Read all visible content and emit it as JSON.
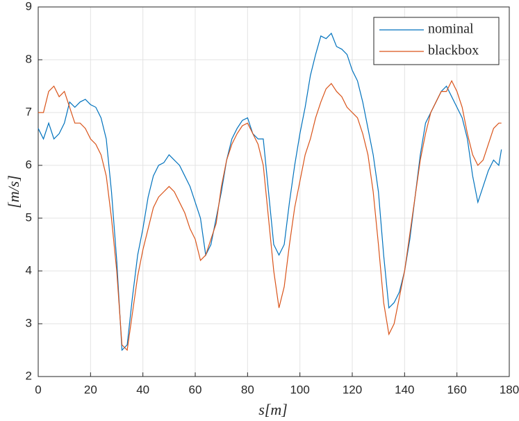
{
  "chart_data": {
    "type": "line",
    "x_label": "s[m]",
    "y_label": "[m/s]",
    "x": [
      0,
      2,
      4,
      6,
      8,
      10,
      12,
      14,
      16,
      18,
      20,
      22,
      24,
      26,
      28,
      30,
      32,
      34,
      36,
      38,
      40,
      42,
      44,
      46,
      48,
      50,
      52,
      54,
      56,
      58,
      60,
      62,
      64,
      66,
      68,
      70,
      72,
      74,
      76,
      78,
      80,
      82,
      84,
      86,
      88,
      90,
      92,
      94,
      96,
      98,
      100,
      102,
      104,
      106,
      108,
      110,
      112,
      114,
      116,
      118,
      120,
      122,
      124,
      126,
      128,
      130,
      132,
      134,
      136,
      138,
      140,
      142,
      144,
      146,
      148,
      150,
      152,
      154,
      156,
      158,
      160,
      162,
      164,
      166,
      168,
      170,
      172,
      174,
      176,
      177
    ],
    "series": [
      {
        "name": "nominal",
        "color": "#0072BD",
        "values": [
          6.7,
          6.5,
          6.8,
          6.5,
          6.6,
          6.8,
          7.2,
          7.1,
          7.2,
          7.25,
          7.15,
          7.1,
          6.9,
          6.5,
          5.5,
          4.2,
          2.5,
          2.6,
          3.5,
          4.3,
          4.8,
          5.4,
          5.8,
          6.0,
          6.05,
          6.2,
          6.1,
          6.0,
          5.8,
          5.6,
          5.3,
          5.0,
          4.3,
          4.5,
          5.0,
          5.5,
          6.1,
          6.5,
          6.7,
          6.85,
          6.9,
          6.6,
          6.5,
          6.5,
          5.5,
          4.5,
          4.3,
          4.5,
          5.3,
          6.0,
          6.6,
          7.1,
          7.7,
          8.1,
          8.45,
          8.4,
          8.5,
          8.25,
          8.2,
          8.1,
          7.8,
          7.6,
          7.2,
          6.7,
          6.2,
          5.5,
          4.3,
          3.3,
          3.4,
          3.6,
          4.0,
          4.6,
          5.4,
          6.2,
          6.8,
          7.0,
          7.2,
          7.4,
          7.5,
          7.3,
          7.1,
          6.9,
          6.5,
          5.8,
          5.3,
          5.6,
          5.9,
          6.1,
          6.0,
          6.3
        ]
      },
      {
        "name": "blackbox",
        "color": "#D95319",
        "values": [
          7.0,
          7.0,
          7.4,
          7.5,
          7.3,
          7.4,
          7.1,
          6.8,
          6.8,
          6.7,
          6.5,
          6.4,
          6.2,
          5.8,
          5.0,
          4.0,
          2.6,
          2.5,
          3.2,
          3.9,
          4.4,
          4.8,
          5.2,
          5.4,
          5.5,
          5.6,
          5.5,
          5.3,
          5.1,
          4.8,
          4.6,
          4.2,
          4.3,
          4.6,
          4.9,
          5.6,
          6.1,
          6.4,
          6.6,
          6.75,
          6.8,
          6.6,
          6.4,
          6.0,
          5.0,
          4.0,
          3.3,
          3.7,
          4.5,
          5.2,
          5.7,
          6.2,
          6.5,
          6.9,
          7.2,
          7.45,
          7.55,
          7.4,
          7.3,
          7.1,
          7.0,
          6.9,
          6.6,
          6.2,
          5.5,
          4.5,
          3.4,
          2.8,
          3.0,
          3.5,
          4.0,
          4.7,
          5.4,
          6.1,
          6.6,
          7.0,
          7.2,
          7.4,
          7.4,
          7.6,
          7.4,
          7.1,
          6.6,
          6.2,
          6.0,
          6.1,
          6.4,
          6.7,
          6.8,
          6.8
        ]
      }
    ],
    "xlim": [
      0,
      180
    ],
    "xticks": [
      0,
      20,
      40,
      60,
      80,
      100,
      120,
      140,
      160,
      180
    ],
    "ylim": [
      2,
      9
    ],
    "yticks": [
      2,
      3,
      4,
      5,
      6,
      7,
      8,
      9
    ],
    "grid": true,
    "legend": "upper right"
  }
}
